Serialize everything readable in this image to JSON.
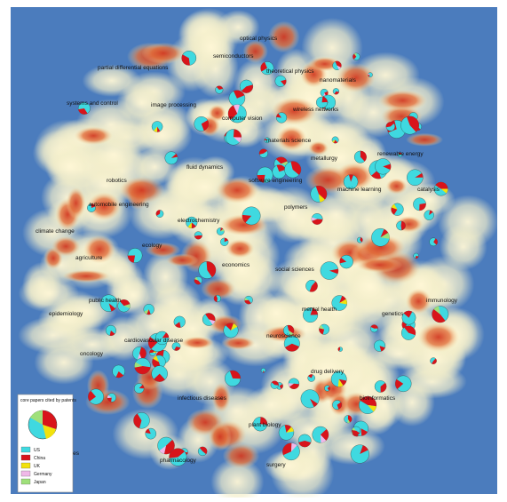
{
  "map": {
    "labels": [
      "optical physics",
      "semiconductors",
      "partial differential equations",
      "theoretical physics",
      "nanomaterials",
      "systems and control",
      "image processing",
      "computer vision",
      "wireless networks",
      "materials science",
      "metallurgy",
      "renewable energy",
      "fluid dynamics",
      "robotics",
      "software engineering",
      "machine learning",
      "automobile engineering",
      "catalysis",
      "polymers",
      "electrochemistry",
      "climate change",
      "agriculture",
      "ecology",
      "social sciences",
      "economics",
      "public health",
      "epidemiology",
      "mental health",
      "neuroscience",
      "genetics",
      "immunology",
      "oncology",
      "cardiovascular disease",
      "infectious diseases",
      "drug delivery",
      "plant biology",
      "bioinformatics",
      "e-cigarettes",
      "pharmacology",
      "surgery"
    ],
    "legend": {
      "title": "core papers cited by patents",
      "items": [
        "US",
        "China",
        "UK",
        "Germany",
        "Japan"
      ],
      "colors": [
        "#3fd9e0",
        "#d8141b",
        "#f2e20c",
        "#f0b8e8",
        "#9fe07a"
      ]
    }
  }
}
